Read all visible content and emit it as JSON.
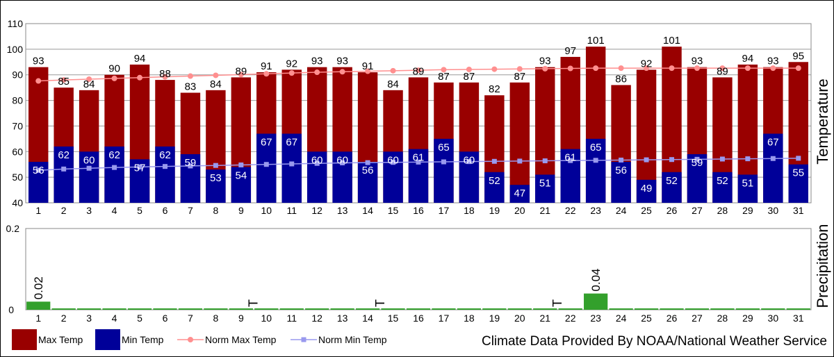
{
  "chart_data": [
    {
      "type": "bar",
      "ylabel": "Temperature",
      "ylim": [
        40,
        110
      ],
      "yticks": [
        40,
        50,
        60,
        70,
        80,
        90,
        100,
        110
      ],
      "grid": true,
      "categories": [
        "1",
        "2",
        "3",
        "4",
        "5",
        "6",
        "7",
        "8",
        "9",
        "10",
        "11",
        "12",
        "13",
        "14",
        "15",
        "16",
        "17",
        "18",
        "19",
        "20",
        "21",
        "22",
        "23",
        "24",
        "25",
        "26",
        "27",
        "28",
        "29",
        "30",
        "31"
      ],
      "series": [
        {
          "name": "Max Temp",
          "kind": "bar",
          "color": "#990000",
          "values": [
            93,
            85,
            84,
            90,
            94,
            88,
            83,
            84,
            89,
            91,
            92,
            93,
            93,
            91,
            84,
            89,
            87,
            87,
            82,
            87,
            93,
            97,
            101,
            86,
            92,
            101,
            93,
            89,
            94,
            93,
            95
          ]
        },
        {
          "name": "Min Temp",
          "kind": "bar",
          "color": "#000099",
          "values": [
            56,
            62,
            60,
            62,
            57,
            62,
            59,
            53,
            54,
            67,
            67,
            60,
            60,
            56,
            60,
            61,
            65,
            60,
            52,
            47,
            51,
            61,
            65,
            56,
            49,
            52,
            59,
            52,
            51,
            67,
            55
          ]
        },
        {
          "name": "Norm Max Temp",
          "kind": "line",
          "color": "#ff8f8f",
          "values": [
            87.6,
            88,
            88.3,
            88.6,
            88.9,
            89.2,
            89.5,
            89.8,
            90.1,
            90.4,
            90.7,
            91,
            91.2,
            91.4,
            91.6,
            91.8,
            92,
            92.1,
            92.2,
            92.3,
            92.4,
            92.5,
            92.6,
            92.6,
            92.6,
            92.6,
            92.6,
            92.6,
            92.6,
            92.6,
            92.6
          ]
        },
        {
          "name": "Norm Min Temp",
          "kind": "line",
          "color": "#9999ee",
          "values": [
            52.7,
            53.2,
            53.5,
            53.8,
            54,
            54.2,
            54.4,
            54.6,
            54.8,
            55,
            55.2,
            55.4,
            55.6,
            55.7,
            55.8,
            55.9,
            56,
            56.1,
            56.2,
            56.3,
            56.4,
            56.5,
            56.6,
            56.7,
            56.8,
            56.9,
            57,
            57.1,
            57.2,
            57.3,
            57.4
          ]
        }
      ]
    },
    {
      "type": "bar",
      "ylabel": "Precipitation",
      "ylim": [
        0,
        0.2
      ],
      "yticks": [
        0,
        0.2
      ],
      "categories": [
        "1",
        "2",
        "3",
        "4",
        "5",
        "6",
        "7",
        "8",
        "9",
        "10",
        "11",
        "12",
        "13",
        "14",
        "15",
        "16",
        "17",
        "18",
        "19",
        "20",
        "21",
        "22",
        "23",
        "24",
        "25",
        "26",
        "27",
        "28",
        "29",
        "30",
        "31"
      ],
      "series": [
        {
          "name": "Precipitation",
          "color": "#33a02c",
          "values": [
            0.02,
            0,
            0,
            0,
            0,
            0,
            0,
            0,
            0,
            0,
            0,
            0,
            0,
            0,
            0,
            0,
            0,
            0,
            0,
            0,
            0,
            0,
            0.04,
            0,
            0,
            0,
            0,
            0,
            0,
            0,
            0
          ]
        }
      ],
      "value_labels": [
        {
          "category": "1",
          "text": "0.02"
        },
        {
          "category": "23",
          "text": "0.04"
        }
      ],
      "trace_labels": [
        {
          "category": "10",
          "text": "T"
        },
        {
          "category": "15",
          "text": "T"
        },
        {
          "category": "22",
          "text": "T"
        }
      ]
    }
  ],
  "legend": [
    {
      "label": "Max Temp",
      "color": "#990000",
      "kind": "box"
    },
    {
      "label": "Min Temp",
      "color": "#000099",
      "kind": "box"
    },
    {
      "label": "Norm Max Temp",
      "color": "#ff8f8f",
      "kind": "line-dot"
    },
    {
      "label": "Norm Min Temp",
      "color": "#9999ee",
      "kind": "line-square"
    }
  ],
  "credit": "Climate Data Provided By NOAA/National Weather Service"
}
